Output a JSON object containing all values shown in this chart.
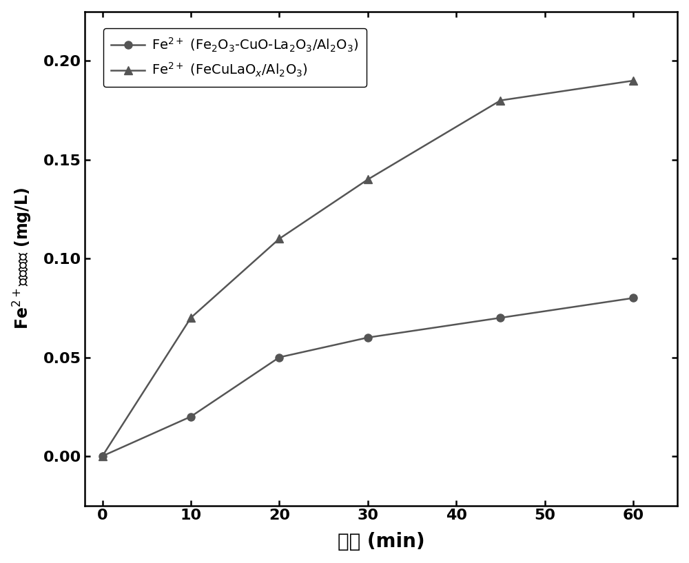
{
  "x": [
    0,
    10,
    20,
    30,
    45,
    60
  ],
  "y_circle": [
    0.0,
    0.02,
    0.05,
    0.06,
    0.07,
    0.08
  ],
  "y_triangle": [
    0.0,
    0.07,
    0.11,
    0.14,
    0.18,
    0.19
  ],
  "color": "#555555",
  "xlabel_cn": "时间",
  "xlabel_en": " (min)",
  "ylim": [
    -0.025,
    0.225
  ],
  "xlim": [
    -2,
    65
  ],
  "xticks": [
    0,
    10,
    20,
    30,
    40,
    50,
    60
  ],
  "yticks": [
    0.0,
    0.05,
    0.1,
    0.15,
    0.2
  ],
  "figwidth": 10.0,
  "figheight": 8.17,
  "dpi": 100
}
